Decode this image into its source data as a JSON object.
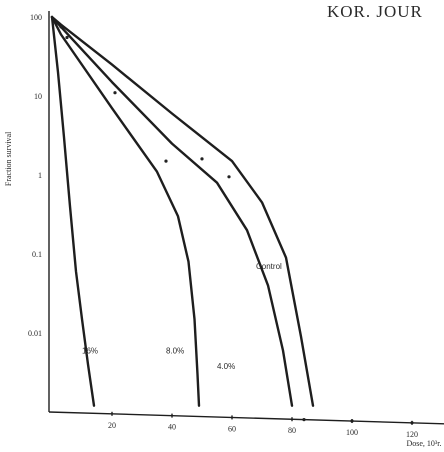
{
  "header": {
    "text": "KOR. JOUR"
  },
  "chart_data": {
    "type": "line",
    "title": "",
    "xlabel": "Dose, 10³r.",
    "ylabel": "Fraction survival",
    "xlim": [
      0,
      140
    ],
    "ylim": [
      0.001,
      100
    ],
    "y_scale": "log",
    "x_ticks": [
      20,
      40,
      60,
      80,
      100,
      120
    ],
    "y_ticks": [
      {
        "value": 100,
        "label": "100"
      },
      {
        "value": 10,
        "label": "10"
      },
      {
        "value": 1,
        "label": "1"
      },
      {
        "value": 0.1,
        "label": "0.1"
      },
      {
        "value": 0.01,
        "label": "0.01"
      }
    ],
    "series": [
      {
        "name": "Control",
        "x": [
          0,
          3,
          20,
          40,
          60,
          70,
          78,
          83,
          87
        ],
        "y": [
          100,
          80,
          25,
          6,
          1.5,
          0.45,
          0.09,
          0.009,
          0.0012
        ]
      },
      {
        "name": "4.0%",
        "x": [
          0,
          3,
          20,
          40,
          55,
          65,
          72,
          77,
          80
        ],
        "y": [
          100,
          75,
          15,
          2.5,
          0.8,
          0.2,
          0.04,
          0.006,
          0.0012
        ]
      },
      {
        "name": "8.0%",
        "x": [
          0,
          3,
          20,
          35,
          42,
          45.5,
          47.5,
          48.5,
          49
        ],
        "y": [
          100,
          60,
          7,
          1.1,
          0.3,
          0.08,
          0.015,
          0.003,
          0.0012
        ]
      },
      {
        "name": "16%",
        "x": [
          0,
          2,
          4,
          6,
          8,
          10,
          12,
          14
        ],
        "y": [
          100,
          20,
          3,
          0.4,
          0.06,
          0.015,
          0.004,
          0.0012
        ]
      }
    ],
    "points": [
      {
        "x": 3,
        "y": 75
      },
      {
        "x": 5,
        "y": 55
      },
      {
        "x": 21,
        "y": 11
      },
      {
        "x": 38,
        "y": 1.5
      },
      {
        "x": 50,
        "y": 1.6
      },
      {
        "x": 59,
        "y": 0.95
      },
      {
        "x": 84,
        "y": 0.0012
      },
      {
        "x": 100,
        "y": 0.0012
      },
      {
        "x": 120,
        "y": 0.0012
      }
    ],
    "grid": false
  }
}
